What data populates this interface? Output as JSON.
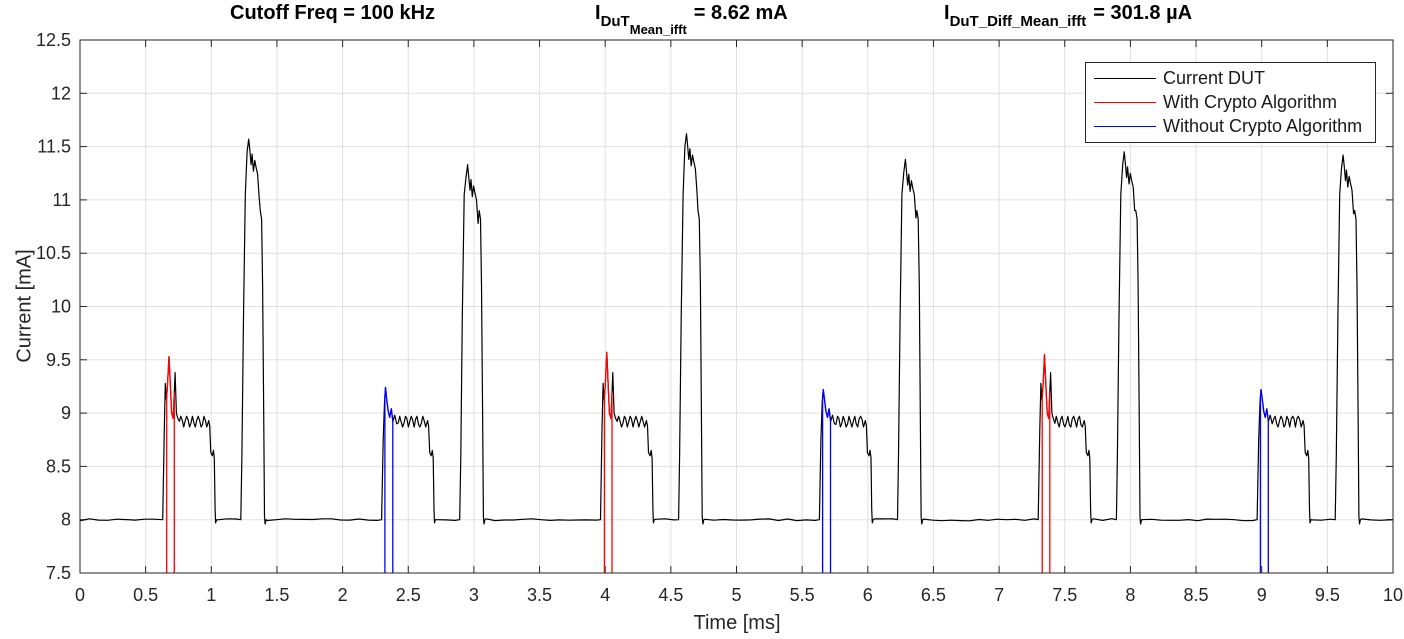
{
  "title": {
    "seg1": "Cutoff Freq = 100 kHz",
    "seg2": {
      "base": "I",
      "sub": "DuT",
      "subsub": "Mean_ifft",
      "rest": "= 8.62 mA"
    },
    "seg3": {
      "base": "I",
      "sub": "DuT_Diff_Mean_ifft",
      "rest": "= 301.8 µA"
    }
  },
  "axes": {
    "xlabel": "Time [ms]",
    "ylabel": "Current [mA]"
  },
  "legend": {
    "items": [
      {
        "label": "Current DUT",
        "color": "#000000"
      },
      {
        "label": "With Crypto Algorithm",
        "color": "#ff0000"
      },
      {
        "label": "Without Crypto Algorithm",
        "color": "#0000ff"
      }
    ]
  },
  "chart_data": {
    "type": "line",
    "title": "Cutoff Freq = 100 kHz   I_DuT_Mean_ifft = 8.62 mA   I_DuT_Diff_Mean_ifft = 301.8 µA",
    "xlabel": "Time [ms]",
    "ylabel": "Current [mA]",
    "xlim": [
      0,
      10
    ],
    "ylim": [
      7.5,
      12.5
    ],
    "xticks": [
      0,
      0.5,
      1,
      1.5,
      2,
      2.5,
      3,
      3.5,
      4,
      4.5,
      5,
      5.5,
      6,
      6.5,
      7,
      7.5,
      8,
      8.5,
      9,
      9.5,
      10
    ],
    "yticks": [
      7.5,
      8,
      8.5,
      9,
      9.5,
      10,
      10.5,
      11,
      11.5,
      12,
      12.5
    ],
    "grid": true,
    "legend_position": "top-right",
    "legend_entries": [
      "Current DUT",
      "With Crypto Algorithm",
      "Without Crypto Algorithm"
    ],
    "annotations": {
      "cutoff_freq": "100 kHz",
      "I_DuT_Mean_ifft": "8.62 mA",
      "I_DuT_Diff_Mean_ifft": "301.8 µA"
    },
    "baseline_mA": 8.0,
    "small_pulse": {
      "duration_ms": 0.41,
      "plateau_mA": 8.92,
      "end_dip_mA": 8.6
    },
    "big_pulse": {
      "duration_ms": 0.2
    },
    "groups": [
      {
        "small_start": 0.63,
        "spike": "red",
        "spike_peak": 9.53,
        "big_start": 1.225,
        "big_peak": 11.57
      },
      {
        "small_start": 2.297,
        "spike": "blue",
        "spike_peak": 9.24,
        "big_start": 2.892,
        "big_peak": 11.33
      },
      {
        "small_start": 3.964,
        "spike": "red",
        "spike_peak": 9.57,
        "big_start": 4.559,
        "big_peak": 11.62
      },
      {
        "small_start": 5.631,
        "spike": "blue",
        "spike_peak": 9.22,
        "big_start": 6.226,
        "big_peak": 11.38
      },
      {
        "small_start": 7.298,
        "spike": "red",
        "spike_peak": 9.55,
        "big_start": 7.893,
        "big_peak": 11.45
      },
      {
        "small_start": 8.965,
        "spike": "blue",
        "spike_peak": 9.22,
        "big_start": 9.56,
        "big_peak": 11.42
      }
    ],
    "colors": {
      "dut": "#000000",
      "with_crypto": "#ff0000",
      "without_crypto": "#0000ff",
      "grid": "#e0e0e0",
      "axis": "#262626"
    }
  }
}
